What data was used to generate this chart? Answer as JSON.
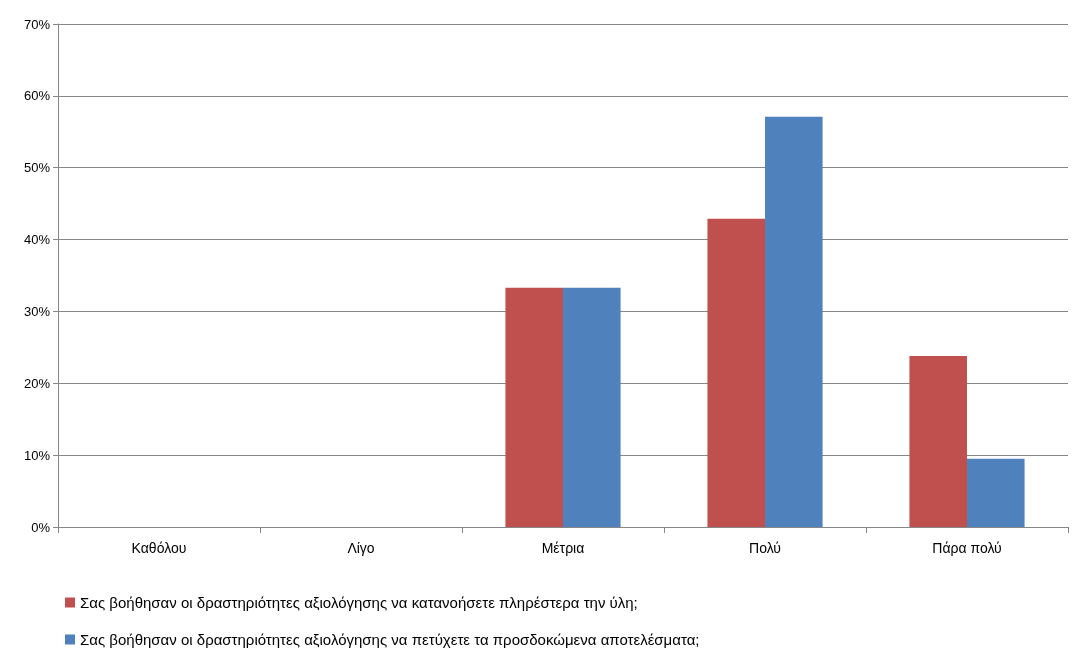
{
  "chart_data": {
    "type": "bar",
    "categories": [
      "Καθόλου",
      "Λίγο",
      "Μέτρια",
      "Πολύ",
      "Πάρα πολύ"
    ],
    "series": [
      {
        "name": "Σας βοήθησαν οι δραστηριότητες αξιολόγησης να κατανοήσετε πληρέστερα την ύλη;",
        "color": "#c0504d",
        "values": [
          0,
          0,
          33.3,
          42.9,
          23.8
        ]
      },
      {
        "name": "Σας βοήθησαν οι δραστηριότητες αξιολόγησης να πετύχετε τα προσδοκώμενα αποτελέσματα;",
        "color": "#4f81bd",
        "values": [
          0,
          0,
          33.3,
          57.1,
          9.5
        ]
      }
    ],
    "ylim": [
      0,
      70
    ],
    "yticks": [
      {
        "value": 0,
        "label": "0%"
      },
      {
        "value": 10,
        "label": "10%"
      },
      {
        "value": 20,
        "label": "20%"
      },
      {
        "value": 30,
        "label": "30%"
      },
      {
        "value": 40,
        "label": "40%"
      },
      {
        "value": 50,
        "label": "50%"
      },
      {
        "value": 60,
        "label": "60%"
      },
      {
        "value": 70,
        "label": "70%"
      }
    ],
    "grid": "y",
    "legend": "bottom"
  }
}
